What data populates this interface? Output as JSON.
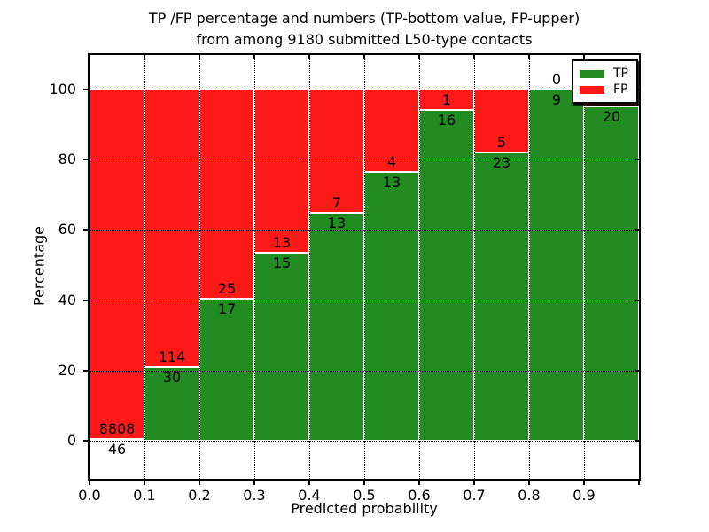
{
  "figure": {
    "title_line1": "TP /FP percentage and numbers (TP-bottom value, FP-upper)",
    "title_line2": "from among 9180 submitted L50-type contacts"
  },
  "chart_data": {
    "type": "bar",
    "stacked": true,
    "title": "TP /FP percentage and numbers (TP-bottom value, FP-upper)\nfrom among 9180 submitted L50-type contacts",
    "total_submitted": 9180,
    "xlabel": "Predicted probability",
    "ylabel": "Percentage",
    "x_tick_labels": [
      "0.0",
      "0.1",
      "0.2",
      "0.3",
      "0.4",
      "0.5",
      "0.6",
      "0.7",
      "0.8",
      "0.9"
    ],
    "y_tick_values": [
      0,
      20,
      40,
      60,
      80,
      100
    ],
    "y_tick_labels": [
      "0",
      "20",
      "40",
      "60",
      "80",
      "100"
    ],
    "xlim": [
      0.0,
      1.0
    ],
    "ylim_render": [
      -10.9,
      109.9
    ],
    "bin_width": 0.1,
    "grid": true,
    "grid_style": "dotted",
    "colors": {
      "tp": "#228b22",
      "fp": "#ff1a1a"
    },
    "legend": {
      "position": "upper-right",
      "entries": [
        {
          "label": "TP",
          "color": "#228b22"
        },
        {
          "label": "FP",
          "color": "#ff1a1a"
        }
      ]
    },
    "bins": [
      {
        "x_start": 0.0,
        "tp": 46,
        "fp": 8808,
        "tp_pct": 0.52,
        "tp_label": "46",
        "fp_label": "8808",
        "fp_label_hidden": false
      },
      {
        "x_start": 0.1,
        "tp": 30,
        "fp": 114,
        "tp_pct": 20.83,
        "tp_label": "30",
        "fp_label": "114",
        "fp_label_hidden": false
      },
      {
        "x_start": 0.2,
        "tp": 17,
        "fp": 25,
        "tp_pct": 40.48,
        "tp_label": "17",
        "fp_label": "25",
        "fp_label_hidden": false
      },
      {
        "x_start": 0.3,
        "tp": 15,
        "fp": 13,
        "tp_pct": 53.57,
        "tp_label": "15",
        "fp_label": "13",
        "fp_label_hidden": false
      },
      {
        "x_start": 0.4,
        "tp": 13,
        "fp": 7,
        "tp_pct": 65.0,
        "tp_label": "13",
        "fp_label": "7",
        "fp_label_hidden": false
      },
      {
        "x_start": 0.5,
        "tp": 13,
        "fp": 4,
        "tp_pct": 76.47,
        "tp_label": "13",
        "fp_label": "4",
        "fp_label_hidden": false
      },
      {
        "x_start": 0.6,
        "tp": 16,
        "fp": 1,
        "tp_pct": 94.12,
        "tp_label": "16",
        "fp_label": "1",
        "fp_label_hidden": false
      },
      {
        "x_start": 0.7,
        "tp": 23,
        "fp": 5,
        "tp_pct": 82.14,
        "tp_label": "23",
        "fp_label": "5",
        "fp_label_hidden": false
      },
      {
        "x_start": 0.8,
        "tp": 9,
        "fp": 0,
        "tp_pct": 100.0,
        "tp_label": "9",
        "fp_label": "0",
        "fp_label_hidden": false
      },
      {
        "x_start": 0.9,
        "tp": 20,
        "fp": null,
        "tp_pct": 95.24,
        "tp_label": "20",
        "fp_label": "",
        "fp_label_hidden": true
      }
    ]
  }
}
